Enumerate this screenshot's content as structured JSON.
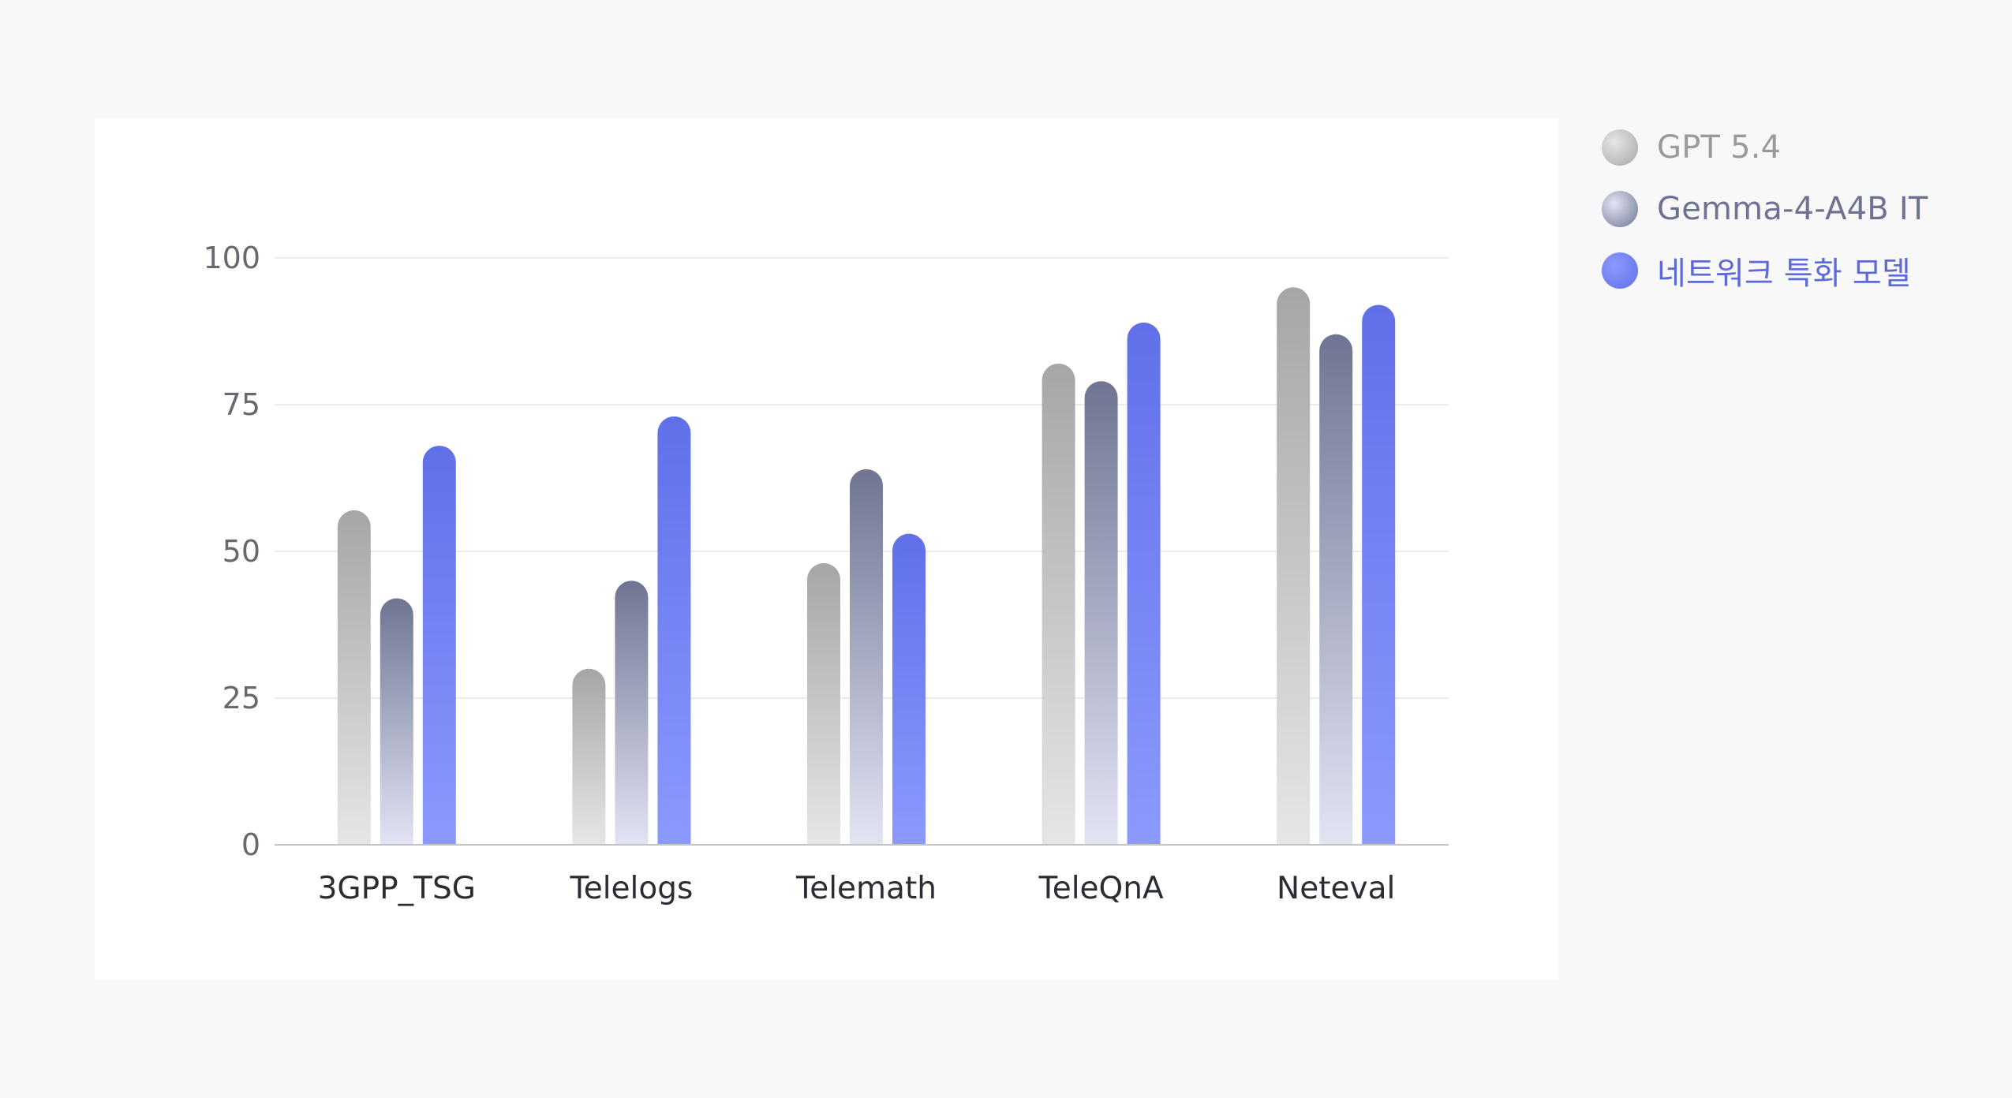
{
  "chart_data": {
    "type": "bar",
    "categories": [
      "3GPP_TSG",
      "Telelogs",
      "Telemath",
      "TeleQnA",
      "Neteval"
    ],
    "series": [
      {
        "name": "GPT 5.4",
        "values": [
          57,
          30,
          48,
          82,
          95
        ],
        "color_top": "#a6a6a6",
        "color_bottom": "#e6e6e6",
        "label_color": "#9a9a9a"
      },
      {
        "name": "Gemma-4-A4B IT",
        "values": [
          42,
          45,
          64,
          79,
          87
        ],
        "color_top": "#6f7592",
        "color_bottom": "#e2e4f4",
        "label_color": "#6d7290"
      },
      {
        "name": "네트워크 특화 모델",
        "values": [
          68,
          73,
          53,
          89,
          92
        ],
        "color_top": "#6070e8",
        "color_bottom": "#8c99ff",
        "label_color": "#5b6ad6"
      }
    ],
    "yticks": [
      0,
      25,
      50,
      75,
      100
    ],
    "ylim": [
      0,
      100
    ],
    "grid": true,
    "legend_position": "right",
    "title": "",
    "xlabel": "",
    "ylabel": ""
  }
}
